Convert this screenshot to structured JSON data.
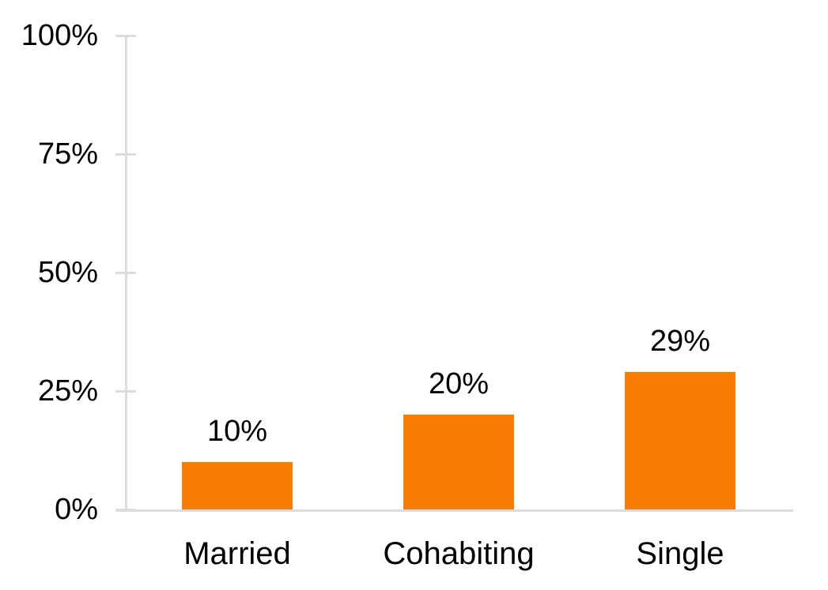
{
  "chart_data": {
    "type": "bar",
    "categories": [
      "Married",
      "Cohabiting",
      "Single"
    ],
    "values": [
      10,
      20,
      29
    ],
    "value_labels": [
      "10%",
      "20%",
      "29%"
    ],
    "title": "",
    "xlabel": "",
    "ylabel": "",
    "ylim": [
      0,
      100
    ],
    "y_ticks": [
      {
        "value": 0,
        "label": "0%"
      },
      {
        "value": 25,
        "label": "25%"
      },
      {
        "value": 50,
        "label": "50%"
      },
      {
        "value": 75,
        "label": "75%"
      },
      {
        "value": 100,
        "label": "100%"
      }
    ],
    "grid": false,
    "legend": null,
    "colors": {
      "bar": "#F97D04",
      "axis": "#DCDCDC",
      "text": "#000000",
      "background": "#FFFFFF"
    }
  }
}
